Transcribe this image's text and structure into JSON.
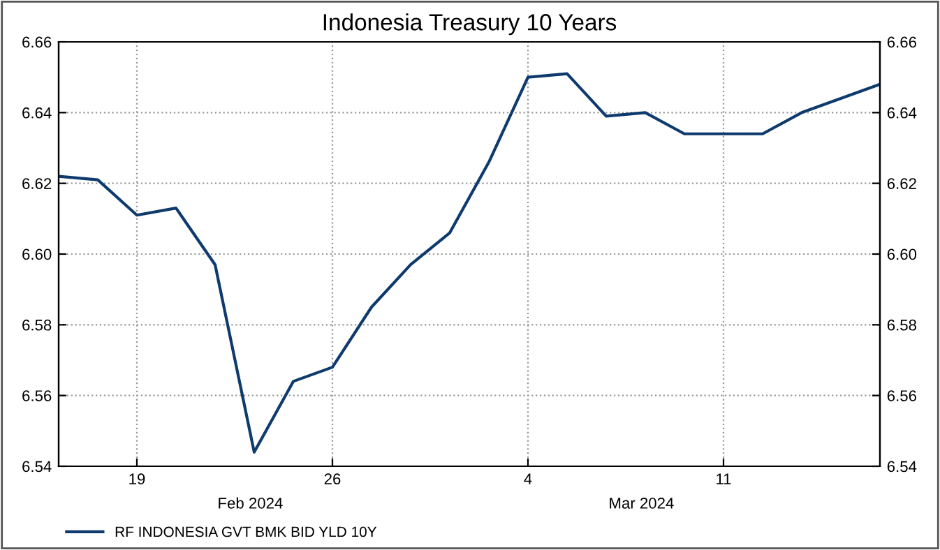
{
  "chart_data": {
    "type": "line",
    "title": "Indonesia Treasury 10 Years",
    "categories": [
      null,
      null,
      "19",
      null,
      null,
      null,
      null,
      "26",
      null,
      null,
      null,
      null,
      "4",
      null,
      null,
      null,
      null,
      "11",
      null,
      null,
      null,
      null
    ],
    "series": [
      {
        "name": "RF INDONESIA GVT BMK BID YLD 10Y",
        "color": "#0f3a6e",
        "values": [
          6.622,
          6.621,
          6.611,
          6.613,
          6.597,
          6.544,
          6.564,
          6.568,
          6.585,
          6.597,
          6.606,
          6.626,
          6.65,
          6.651,
          6.639,
          6.64,
          6.634,
          6.634,
          6.634,
          6.64,
          6.644,
          6.648
        ]
      }
    ],
    "annotations": [
      "Feb 2024",
      "Mar 2024"
    ],
    "ylim": [
      6.54,
      6.66
    ],
    "yticks": [
      {
        "value": 6.54,
        "label": "6.54"
      },
      {
        "value": 6.56,
        "label": "6.56"
      },
      {
        "value": 6.58,
        "label": "6.58"
      },
      {
        "value": 6.6,
        "label": "6.60"
      },
      {
        "value": 6.62,
        "label": "6.62"
      },
      {
        "value": 6.64,
        "label": "6.64"
      },
      {
        "value": 6.66,
        "label": "6.66"
      }
    ],
    "y2lim": [
      6.54,
      6.66
    ],
    "y2ticks": [
      {
        "value": 6.54,
        "label": "6.54"
      },
      {
        "value": 6.56,
        "label": "6.56"
      },
      {
        "value": 6.58,
        "label": "6.58"
      },
      {
        "value": 6.6,
        "label": "6.60"
      },
      {
        "value": 6.62,
        "label": "6.62"
      },
      {
        "value": 6.64,
        "label": "6.64"
      },
      {
        "value": 6.66,
        "label": "6.66"
      }
    ],
    "grid": true,
    "legend": "bottom left",
    "marker": "none",
    "line_style": "solid"
  }
}
